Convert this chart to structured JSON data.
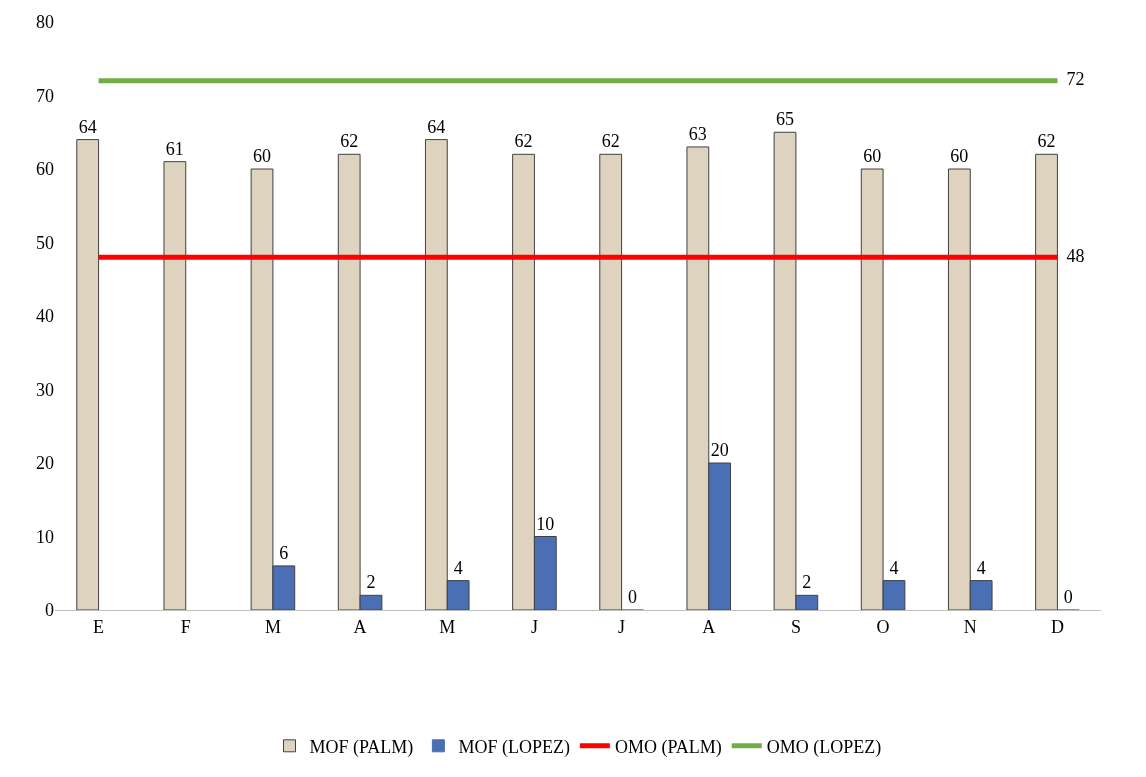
{
  "chart_data": {
    "type": "bar",
    "categories": [
      "E",
      "F",
      "M",
      "A",
      "M",
      "J",
      "J",
      "A",
      "S",
      "O",
      "N",
      "D"
    ],
    "ylim": [
      0,
      80
    ],
    "yticks": [
      0,
      10,
      20,
      30,
      40,
      50,
      60,
      70,
      80
    ],
    "legend": "bottom",
    "series": [
      {
        "name": "MOF (PALM)",
        "color": "#ddd3bf",
        "values": [
          64,
          61,
          60,
          62,
          64,
          62,
          62,
          63,
          65,
          60,
          60,
          62
        ],
        "value_labels": [
          "64",
          "61",
          "60",
          "62",
          "64",
          "62",
          "62",
          "63",
          "65",
          "60",
          "60",
          "62"
        ]
      },
      {
        "name": "MOF (LOPEZ)",
        "color": "#4a6fb5",
        "values": [
          null,
          null,
          6,
          2,
          4,
          10,
          0,
          20,
          2,
          4,
          4,
          0
        ],
        "value_labels": [
          null,
          null,
          "6",
          "2",
          "4",
          "10",
          "0",
          "20",
          "2",
          "4",
          "4",
          "0"
        ]
      },
      {
        "name": "OMO (PALM)",
        "type": "line",
        "color": "#ff0000",
        "values": [
          48,
          48,
          48,
          48,
          48,
          48,
          48,
          48,
          48,
          48,
          48,
          48
        ],
        "value_labels": [
          null,
          null,
          null,
          null,
          null,
          null,
          null,
          null,
          null,
          null,
          null,
          "48"
        ]
      },
      {
        "name": "OMO (LOPEZ)",
        "type": "line",
        "color": "#70ad47",
        "values": [
          72,
          72,
          72,
          72,
          72,
          72,
          72,
          72,
          72,
          72,
          72,
          72
        ],
        "value_labels": [
          null,
          null,
          null,
          null,
          null,
          null,
          null,
          null,
          null,
          null,
          null,
          "72"
        ]
      }
    ]
  }
}
